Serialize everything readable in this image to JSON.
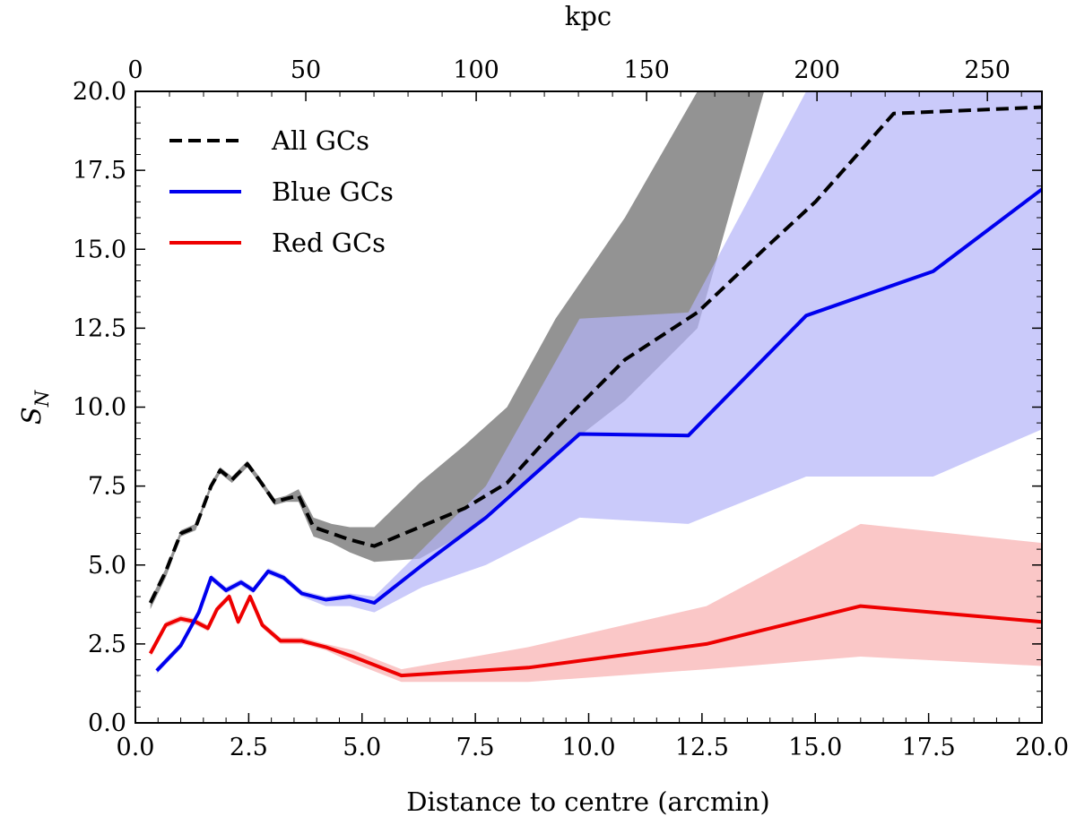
{
  "chart_data": {
    "type": "line",
    "title": "",
    "xlabel": "Distance to centre (arcmin)",
    "ylabel": "S_N",
    "ylabel_main": "S",
    "ylabel_sub": "N",
    "top_xlabel": "kpc",
    "xlim": [
      0.0,
      20.0
    ],
    "ylim": [
      0.0,
      20.0
    ],
    "top_xlim": [
      0,
      266
    ],
    "x_ticks": [
      "0.0",
      "2.5",
      "5.0",
      "7.5",
      "10.0",
      "12.5",
      "15.0",
      "17.5",
      "20.0"
    ],
    "y_ticks": [
      "0.0",
      "2.5",
      "5.0",
      "7.5",
      "10.0",
      "12.5",
      "15.0",
      "17.5",
      "20.0"
    ],
    "top_ticks": [
      "0",
      "50",
      "100",
      "150",
      "200",
      "250"
    ],
    "legend_position": "top-left",
    "series": [
      {
        "name": "All GCs",
        "color": "#000000",
        "linestyle": "dashed",
        "band_color": "#808080",
        "x": [
          0.33,
          0.67,
          1.0,
          1.33,
          1.67,
          1.87,
          2.13,
          2.47,
          2.73,
          3.07,
          3.33,
          3.6,
          3.93,
          4.33,
          4.73,
          5.27,
          6.27,
          7.27,
          8.2,
          9.27,
          10.8,
          12.4,
          13.87,
          15.0,
          16.73,
          20.0
        ],
        "values": [
          3.8,
          4.8,
          6.0,
          6.2,
          7.5,
          8.0,
          7.7,
          8.2,
          7.7,
          7.0,
          7.1,
          7.2,
          6.2,
          6.0,
          5.8,
          5.6,
          6.2,
          6.8,
          7.6,
          9.3,
          11.5,
          13.0,
          15.0,
          16.5,
          19.3,
          19.5
        ],
        "upper": [
          3.9,
          4.9,
          6.1,
          6.3,
          7.6,
          8.1,
          7.8,
          8.3,
          7.8,
          7.1,
          7.2,
          7.4,
          6.5,
          6.3,
          6.2,
          6.2,
          7.6,
          8.8,
          10.0,
          12.8,
          16.0,
          20.0,
          21.0,
          21.0,
          21.0,
          21.0
        ],
        "lower": [
          3.6,
          4.6,
          5.9,
          6.1,
          7.4,
          7.9,
          7.6,
          8.1,
          7.6,
          6.9,
          7.0,
          7.0,
          5.9,
          5.7,
          5.4,
          5.1,
          5.2,
          6.0,
          7.2,
          8.5,
          10.2,
          12.5,
          20.0,
          21.0,
          21.0,
          21.0
        ]
      },
      {
        "name": "Blue GCs",
        "color": "#0000ee",
        "linestyle": "solid",
        "band_color": "#b4b4f8",
        "x": [
          0.47,
          1.0,
          1.4,
          1.67,
          2.0,
          2.33,
          2.6,
          2.93,
          3.27,
          3.67,
          4.2,
          4.73,
          5.27,
          6.33,
          7.73,
          9.8,
          12.2,
          14.8,
          17.6,
          20.0
        ],
        "values": [
          1.65,
          2.45,
          3.5,
          4.6,
          4.2,
          4.45,
          4.2,
          4.8,
          4.6,
          4.1,
          3.9,
          4.0,
          3.8,
          5.0,
          6.5,
          9.15,
          9.1,
          12.9,
          14.3,
          16.9
        ],
        "upper": [
          1.75,
          2.55,
          3.6,
          4.7,
          4.3,
          4.55,
          4.3,
          4.9,
          4.7,
          4.2,
          4.0,
          4.1,
          4.0,
          5.5,
          7.5,
          12.8,
          13.0,
          20.0,
          21.0,
          21.0
        ],
        "lower": [
          1.55,
          2.35,
          3.4,
          4.5,
          4.1,
          4.35,
          4.1,
          4.7,
          4.5,
          4.0,
          3.7,
          3.7,
          3.5,
          4.3,
          5.0,
          6.5,
          6.3,
          7.8,
          7.8,
          9.3
        ]
      },
      {
        "name": "Red GCs",
        "color": "#ee0000",
        "linestyle": "solid",
        "band_color": "#fac4c4",
        "x": [
          0.33,
          0.67,
          1.0,
          1.33,
          1.6,
          1.8,
          2.07,
          2.27,
          2.53,
          2.8,
          3.2,
          3.67,
          4.2,
          4.8,
          5.87,
          8.67,
          12.6,
          16.0,
          20.0
        ],
        "values": [
          2.2,
          3.1,
          3.3,
          3.2,
          3.0,
          3.6,
          4.0,
          3.2,
          4.0,
          3.1,
          2.6,
          2.6,
          2.4,
          2.1,
          1.5,
          1.75,
          2.5,
          3.7,
          3.2
        ],
        "upper": [
          2.3,
          3.2,
          3.4,
          3.3,
          3.1,
          3.7,
          4.1,
          3.3,
          4.1,
          3.2,
          2.7,
          2.7,
          2.5,
          2.3,
          1.7,
          2.4,
          3.7,
          6.3,
          5.7
        ],
        "lower": [
          2.1,
          3.0,
          3.2,
          3.1,
          2.9,
          3.5,
          3.9,
          3.1,
          3.9,
          3.0,
          2.5,
          2.5,
          2.3,
          1.9,
          1.3,
          1.3,
          1.7,
          2.1,
          1.8
        ]
      }
    ]
  }
}
